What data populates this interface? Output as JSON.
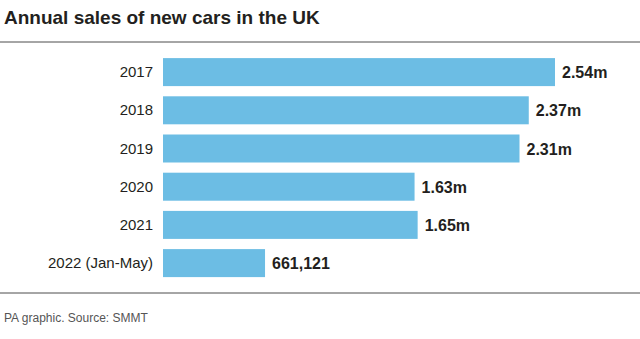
{
  "chart_data": {
    "type": "bar",
    "title": "Annual sales of new cars in the UK",
    "source": "PA graphic. Source: SMMT",
    "orientation": "horizontal",
    "categories": [
      "2017",
      "2018",
      "2019",
      "2020",
      "2021",
      "2022 (Jan-May)"
    ],
    "values": [
      2540000,
      2370000,
      2310000,
      1630000,
      1650000,
      661121
    ],
    "value_labels": [
      "2.54m",
      "2.37m",
      "2.31m",
      "1.63m",
      "1.65m",
      "661,121"
    ],
    "color": "#6cbde4",
    "data_labels": true,
    "tick_labels": "y"
  }
}
